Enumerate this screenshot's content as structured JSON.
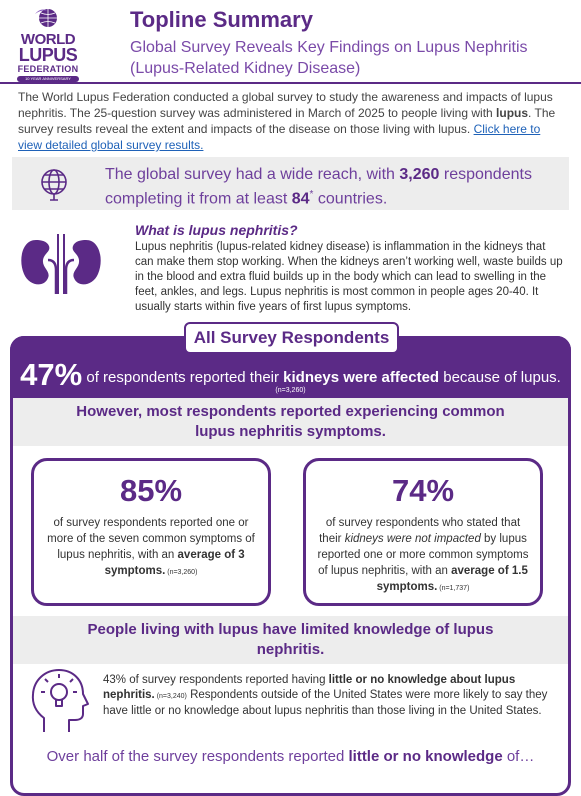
{
  "header": {
    "logo": [
      "WORLD",
      "LUPUS",
      "FEDERATION"
    ],
    "logo_tagline": "10 YEAR ANNIVERSARY",
    "title": "Topline Summary",
    "subtitle": "Global Survey Reveals Key Findings on Lupus Nephritis (Lupus-Related Kidney Disease)"
  },
  "intro": {
    "before": "The World Lupus Federation conducted a global survey to study the awareness and impacts of lupus nephritis. The 25-question survey was administered in March of 2025 to people living with ",
    "bold": "lupus",
    "after": ". The survey results reveal the extent and impacts of the disease on those living with lupus. ",
    "link": "Click here to view detailed global survey results."
  },
  "reach": {
    "before": "The global survey had a wide reach, with ",
    "respondents": "3,260",
    "middle": " respondents completing it from at least ",
    "countries": "84",
    "mark": "*",
    "after": " countries."
  },
  "what_is": {
    "heading": "What is lupus nephritis?",
    "body": "Lupus nephritis (lupus-related kidney disease) is inflammation in the kidneys that can make them stop working. When the kidneys aren’t working well, waste builds up in the blood and extra fluid builds up in the body which can lead to swelling in the feet, ankles, and legs. Lupus nephritis is most common in people ages 20-40. It usually starts within five years of first lupus symptoms."
  },
  "section": {
    "tab": "All Survey Respondents",
    "stat": "47%",
    "stat_before": " of respondents reported their ",
    "stat_bold": "kidneys were affected",
    "stat_after": " because of lupus.",
    "stat_n": "(n=3,260)",
    "symptoms_heading": "However, most respondents reported experiencing common lupus nephritis symptoms.",
    "cards": [
      {
        "stat": "85%",
        "text": "of survey respondents reported one or more of the seven common symptoms of lupus nephritis, with an ",
        "bold": "average of 3 symptoms.",
        "n": " (n=3,260)"
      },
      {
        "stat": "74%",
        "text": "of survey respondents who stated that their ",
        "italic": "kidneys were not impacted",
        "text_2": " by lupus reported one or more common symptoms of lupus nephritis, with an ",
        "bold": "average of 1.5 symptoms.",
        "n": " (n=1,737)"
      }
    ],
    "knowledge_heading": "People living with lupus have limited knowledge of lupus nephritis.",
    "knowledge": {
      "before": "43% of survey respondents reported having ",
      "bold": "little or no knowledge about lupus nephritis.",
      "n": " (n=3,240)",
      "after": "  Respondents outside of the United States were more likely to say they have little or no knowledge about lupus nephritis than those living in the United States."
    },
    "bottom": {
      "before": "Over half of the survey respondents reported ",
      "bold": "little or no knowledge",
      "after": " of…"
    }
  }
}
